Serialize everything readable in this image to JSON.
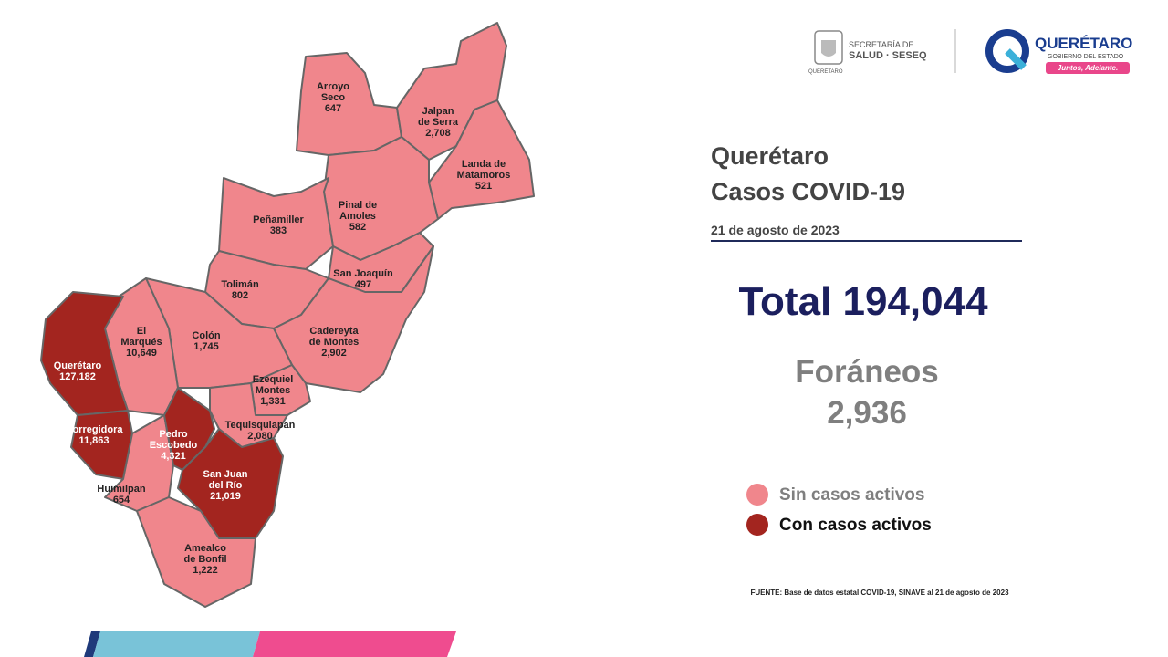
{
  "header": {
    "seseq_line1": "SECRETARÍA DE",
    "seseq_line2": "SALUD · SESEQ",
    "seseq_sub": "QUERÉTARO",
    "gov_title": "QUERÉTARO",
    "gov_sub": "GOBIERNO DEL ESTADO",
    "gov_tag": "Juntos, Adelante."
  },
  "title": [
    "Querétaro",
    "Casos COVID-19"
  ],
  "date": "21 de agosto de 2023",
  "total": "Total 194,044",
  "foraneos": {
    "label": "Foráneos",
    "value": "2,936"
  },
  "legend": [
    {
      "label": "Sin casos activos",
      "color": "#f0868c"
    },
    {
      "label": "Con casos activos",
      "color": "#a3251f"
    }
  ],
  "source": "FUENTE: Base de datos estatal COVID-19, SINAVE  al 21 de agosto de 2023",
  "municipalities": [
    {
      "name": [
        "Arroyo",
        "Seco"
      ],
      "cases": "647",
      "active": false
    },
    {
      "name": [
        "Jalpan",
        "de Serra"
      ],
      "cases": "2,708",
      "active": false
    },
    {
      "name": [
        "Landa de",
        "Matamoros"
      ],
      "cases": "521",
      "active": false
    },
    {
      "name": [
        "Pinal de",
        "Amoles"
      ],
      "cases": "582",
      "active": false
    },
    {
      "name": [
        "Peñamiller"
      ],
      "cases": "383",
      "active": false
    },
    {
      "name": [
        "San Joaquín"
      ],
      "cases": "497",
      "active": false
    },
    {
      "name": [
        "Tolimán"
      ],
      "cases": "802",
      "active": false
    },
    {
      "name": [
        "Cadereyta",
        "de Montes"
      ],
      "cases": "2,902",
      "active": false
    },
    {
      "name": [
        "Colón"
      ],
      "cases": "1,745",
      "active": false
    },
    {
      "name": [
        "Ezequiel",
        "Montes"
      ],
      "cases": "1,331",
      "active": false
    },
    {
      "name": [
        "El",
        "Marqués"
      ],
      "cases": "10,649",
      "active": false
    },
    {
      "name": [
        "Querétaro"
      ],
      "cases": "127,182",
      "active": true
    },
    {
      "name": [
        "Corregidora"
      ],
      "cases": "11,863",
      "active": true
    },
    {
      "name": [
        "Huimilpan"
      ],
      "cases": "654",
      "active": false
    },
    {
      "name": [
        "Pedro",
        "Escobedo"
      ],
      "cases": "4,321",
      "active": true
    },
    {
      "name": [
        "Tequisquiapan"
      ],
      "cases": "2,080",
      "active": false
    },
    {
      "name": [
        "San Juan",
        "del Río"
      ],
      "cases": "21,019",
      "active": true
    },
    {
      "name": [
        "Amealco",
        "de Bonfil"
      ],
      "cases": "1,222",
      "active": false
    }
  ]
}
